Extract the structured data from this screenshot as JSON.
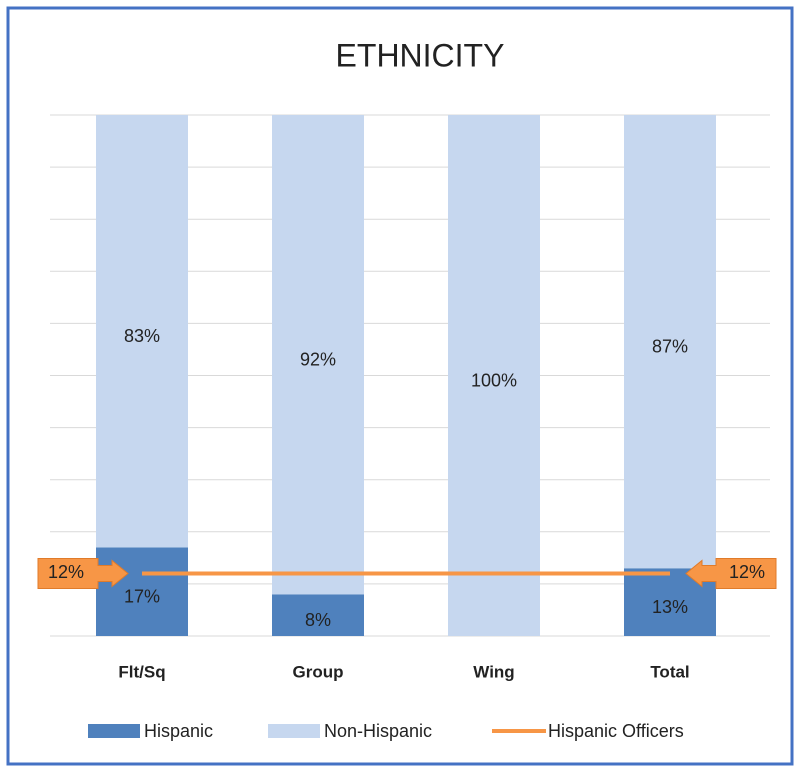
{
  "chart_data": {
    "type": "stacked_bar",
    "title": "ETHNICITY",
    "categories": [
      "Flt/Sq",
      "Group",
      "Wing",
      "Total"
    ],
    "series": [
      {
        "name": "Hispanic",
        "color": "#4f81bd",
        "values": [
          17,
          8,
          0,
          13
        ],
        "value_labels": [
          "17%",
          "8%",
          null,
          "13%"
        ]
      },
      {
        "name": "Non-Hispanic",
        "color": "#c6d7ef",
        "values": [
          83,
          92,
          100,
          87
        ],
        "value_labels": [
          "83%",
          "92%",
          "100%",
          "87%"
        ]
      },
      {
        "name": "Hispanic Officers",
        "type": "line",
        "color": "#f79646",
        "values": [
          12,
          12,
          12,
          12
        ],
        "value_labels": [
          "12%",
          null,
          null,
          "12%"
        ]
      }
    ],
    "ylim": [
      0,
      100
    ],
    "yticks": [
      0,
      10,
      20,
      30,
      40,
      50,
      60,
      70,
      80,
      90,
      100
    ],
    "grid": true,
    "legend": "bottom"
  }
}
